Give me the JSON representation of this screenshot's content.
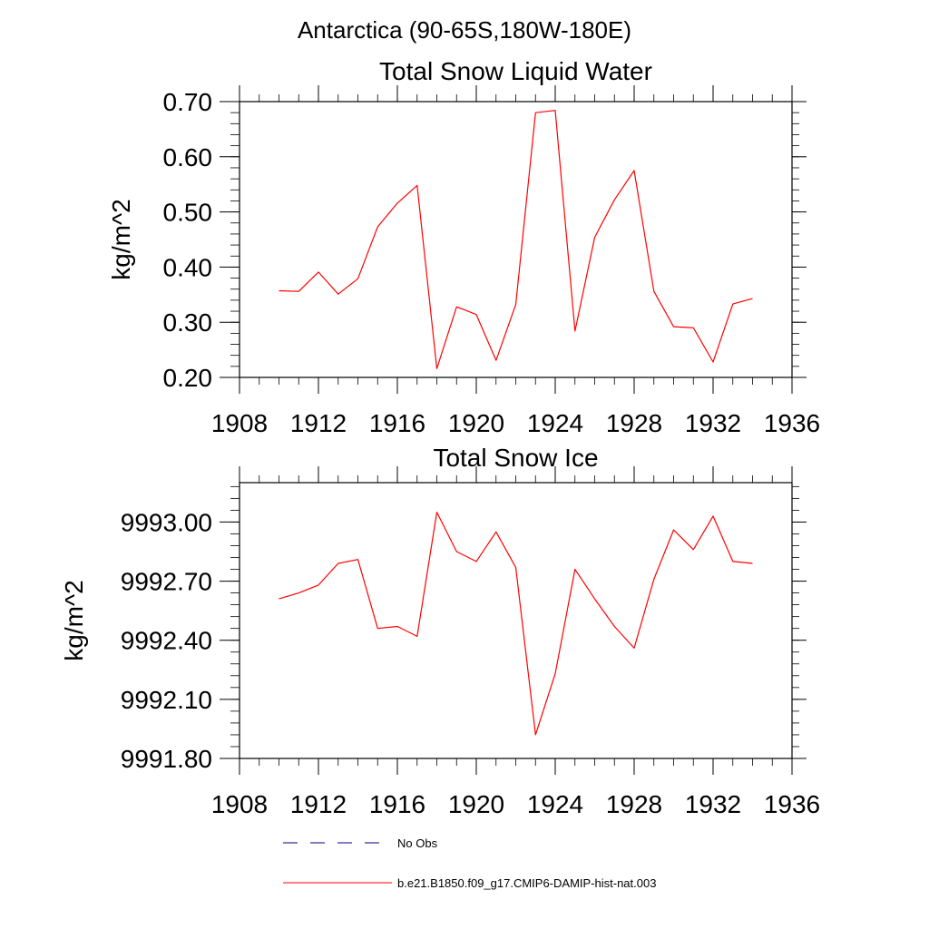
{
  "figure": {
    "suptitle": "Antarctica (90-65S,180W-180E)",
    "line_color": "#ff0000",
    "obs_color": "#000080"
  },
  "legend": {
    "placement": "bottom",
    "entries": [
      {
        "label": "No Obs",
        "style": "dashed",
        "color": "#000080"
      },
      {
        "label": "b.e21.B1850.f09_g17.CMIP6-DAMIP-hist-nat.003",
        "style": "solid",
        "color": "#ff0000"
      }
    ]
  },
  "chart_data": [
    {
      "type": "line",
      "title": "Total Snow Liquid Water",
      "xlabel": "",
      "ylabel": "kg/m^2",
      "xlim": [
        1908,
        1936
      ],
      "ylim": [
        0.2,
        0.7
      ],
      "xticks": [
        "1908",
        "1912",
        "1916",
        "1920",
        "1924",
        "1928",
        "1932",
        "1936"
      ],
      "yticks": [
        "0.20",
        "0.30",
        "0.40",
        "0.50",
        "0.60",
        "0.70"
      ],
      "grid": false,
      "series": [
        {
          "x": [
            1910,
            1911,
            1912,
            1913,
            1914,
            1915,
            1916,
            1917,
            1918,
            1919,
            1920,
            1921,
            1922,
            1923,
            1924,
            1925,
            1926,
            1927,
            1928,
            1929,
            1930,
            1931,
            1932,
            1933,
            1934
          ],
          "values": [
            0.357,
            0.356,
            0.391,
            0.351,
            0.379,
            0.473,
            0.516,
            0.548,
            0.216,
            0.328,
            0.314,
            0.231,
            0.332,
            0.68,
            0.684,
            0.284,
            0.454,
            0.522,
            0.575,
            0.356,
            0.292,
            0.29,
            0.228,
            0.333,
            0.343
          ]
        }
      ]
    },
    {
      "type": "line",
      "title": "Total Snow Ice",
      "xlabel": "",
      "ylabel": "kg/m^2",
      "xlim": [
        1908,
        1936
      ],
      "ylim": [
        9991.8,
        9993.2
      ],
      "xticks": [
        "1908",
        "1912",
        "1916",
        "1920",
        "1924",
        "1928",
        "1932",
        "1936"
      ],
      "yticks": [
        "9991.80",
        "9992.10",
        "9992.40",
        "9992.70",
        "9993.00"
      ],
      "grid": false,
      "series": [
        {
          "x": [
            1910,
            1911,
            1912,
            1913,
            1914,
            1915,
            1916,
            1917,
            1918,
            1919,
            1920,
            1921,
            1922,
            1923,
            1924,
            1925,
            1926,
            1927,
            1928,
            1929,
            1930,
            1931,
            1932,
            1933,
            1934
          ],
          "values": [
            9992.61,
            9992.64,
            9992.68,
            9992.79,
            9992.81,
            9992.46,
            9992.47,
            9992.42,
            9993.05,
            9992.85,
            9992.8,
            9992.95,
            9992.77,
            9991.92,
            9992.23,
            9992.76,
            9992.61,
            9992.47,
            9992.36,
            9992.71,
            9992.96,
            9992.86,
            9993.03,
            9992.8,
            9992.79
          ]
        }
      ]
    }
  ]
}
